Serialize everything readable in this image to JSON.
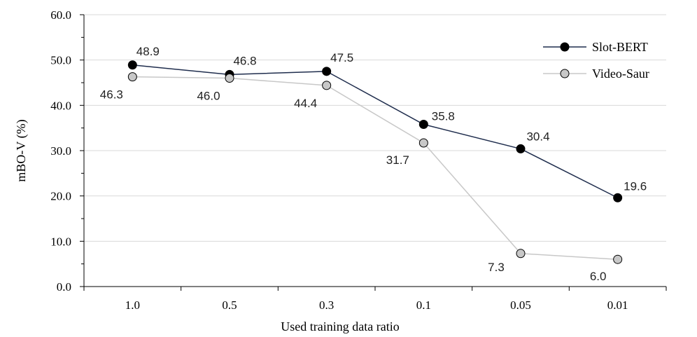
{
  "chart_data": {
    "type": "line",
    "categories": [
      "1.0",
      "0.5",
      "0.3",
      "0.1",
      "0.05",
      "0.01"
    ],
    "series": [
      {
        "name": "Slot-BERT",
        "values": [
          48.9,
          46.8,
          47.5,
          35.8,
          30.4,
          19.6
        ],
        "labels": [
          "48.9",
          "46.8",
          "47.5",
          "35.8",
          "30.4",
          "19.6"
        ],
        "color": "#1f2d4d",
        "marker_fill": "#000000"
      },
      {
        "name": "Video-Saur",
        "values": [
          46.3,
          46.0,
          44.4,
          31.7,
          7.3,
          6.0
        ],
        "labels": [
          "46.3",
          "46.0",
          "44.4",
          "31.7",
          "7.3",
          "6.0"
        ],
        "color": "#c8c8c8",
        "marker_fill": "#c8c8c8"
      }
    ],
    "yticks": [
      "0.0",
      "10.0",
      "20.0",
      "30.0",
      "40.0",
      "50.0",
      "60.0"
    ],
    "xlabel": "Used training data ratio",
    "ylabel": "mBO-V (%)",
    "ylim": [
      0,
      60
    ],
    "grid": true,
    "legend_position": "top-right"
  }
}
